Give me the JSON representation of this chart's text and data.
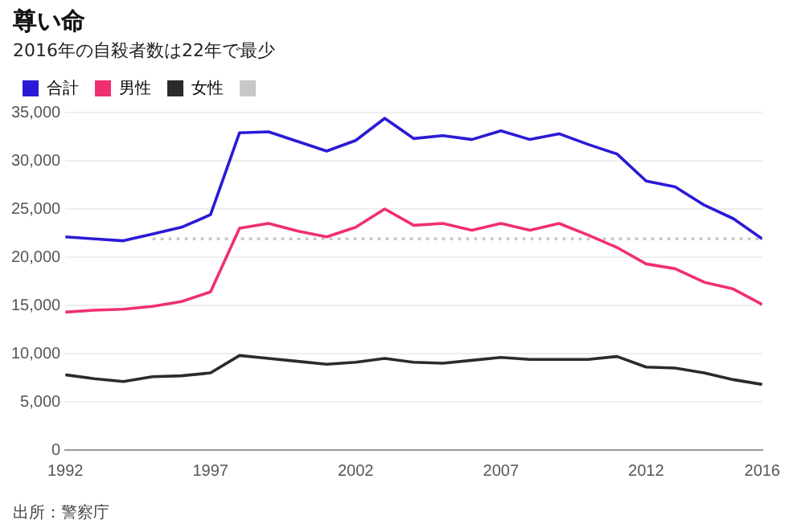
{
  "chart_data": {
    "type": "line",
    "title": "尊い命",
    "subtitle": "2016年の自殺者数は22年で最少",
    "x": [
      1992,
      1993,
      1994,
      1995,
      1996,
      1997,
      1998,
      1999,
      2000,
      2001,
      2002,
      2003,
      2004,
      2005,
      2006,
      2007,
      2008,
      2009,
      2010,
      2011,
      2012,
      2013,
      2014,
      2015,
      2016
    ],
    "series": [
      {
        "name": "合計",
        "color": "#2a1ad6",
        "values": [
          22100,
          21900,
          21700,
          22400,
          23100,
          24400,
          32900,
          33000,
          32000,
          31000,
          32100,
          34400,
          32300,
          32600,
          32200,
          33100,
          32200,
          32800,
          31700,
          30700,
          27900,
          27300,
          25400,
          24000,
          21900
        ]
      },
      {
        "name": "男性",
        "color": "#f0306e",
        "values": [
          14300,
          14500,
          14600,
          14900,
          15400,
          16400,
          23000,
          23500,
          22700,
          22100,
          23100,
          25000,
          23300,
          23500,
          22800,
          23500,
          22800,
          23500,
          22300,
          21000,
          19300,
          18800,
          17400,
          16700,
          15100
        ]
      },
      {
        "name": "女性",
        "color": "#2b2b2b",
        "values": [
          7800,
          7400,
          7100,
          7600,
          7700,
          8000,
          9800,
          9500,
          9200,
          8900,
          9100,
          9500,
          9100,
          9000,
          9300,
          9600,
          9400,
          9400,
          9400,
          9700,
          8600,
          8500,
          8000,
          7300,
          6800
        ]
      },
      {
        "color": "#c8c8c8",
        "x": [
          1995,
          2016
        ],
        "values": [
          21900,
          21900
        ],
        "line_style": "dotted"
      }
    ],
    "xlim": [
      1992,
      2016
    ],
    "xticks": [
      1992,
      1997,
      2002,
      2007,
      2012,
      2016
    ],
    "ylim": [
      0,
      35000
    ],
    "yticks": [
      {
        "value": 0,
        "label": "0"
      },
      {
        "value": 5000,
        "label": "5,000"
      },
      {
        "value": 10000,
        "label": "10,000"
      },
      {
        "value": 15000,
        "label": "15,000"
      },
      {
        "value": 20000,
        "label": "20,000"
      },
      {
        "value": 25000,
        "label": "25,000"
      },
      {
        "value": 30000,
        "label": "30,000"
      },
      {
        "value": 35000,
        "label": "35,000"
      }
    ],
    "grid": "y",
    "legend": "top left",
    "marker": "none",
    "line_style": "solid",
    "annotations": [
      "出所：警察庁"
    ]
  }
}
